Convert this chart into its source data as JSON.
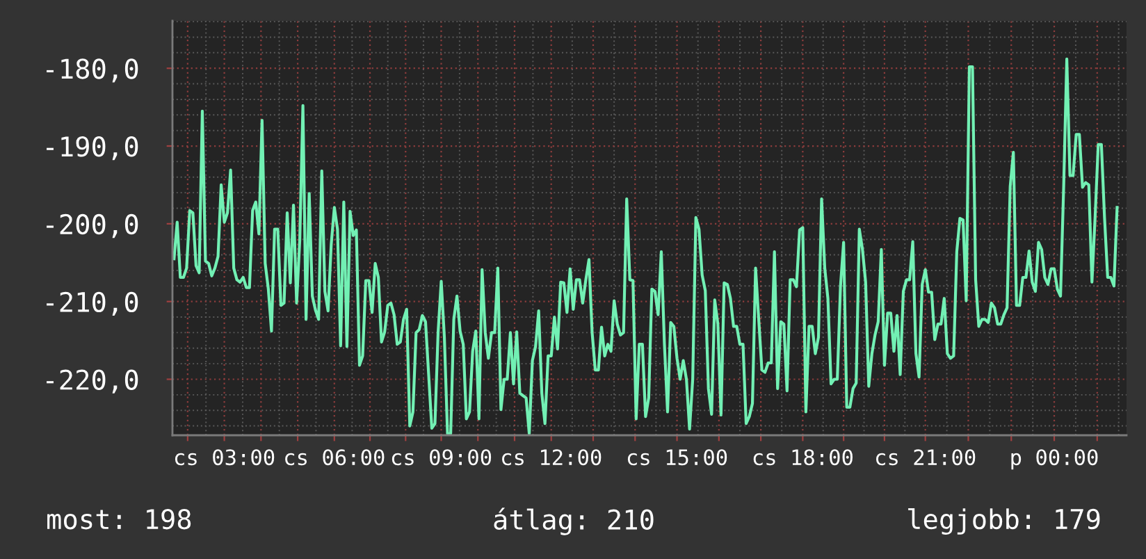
{
  "chart_data": {
    "type": "line",
    "categories": [
      null,
      null,
      null,
      null,
      null,
      null,
      null,
      null,
      null,
      null,
      null,
      null,
      null,
      null,
      null,
      null,
      "cs 03:00",
      null,
      null,
      null,
      null,
      null,
      null,
      null,
      null,
      null,
      null,
      null,
      null,
      null,
      null,
      null,
      null,
      null,
      null,
      null,
      null,
      null,
      null,
      null,
      null,
      null,
      null,
      null,
      null,
      null,
      null,
      null,
      null,
      null,
      null,
      "cs 06:00",
      null,
      null,
      null,
      null,
      null,
      null,
      null,
      null,
      null,
      null,
      null,
      null,
      null,
      null,
      null,
      null,
      null,
      null,
      null,
      null,
      null,
      null,
      null,
      null,
      null,
      null,
      null,
      null,
      null,
      null,
      null,
      null,
      null,
      "cs 09:00",
      null,
      null,
      null,
      null,
      null,
      null,
      null,
      null,
      null,
      null,
      null,
      null,
      null,
      null,
      null,
      null,
      null,
      null,
      null,
      null,
      null,
      null,
      null,
      null,
      null,
      null,
      null,
      null,
      null,
      null,
      null,
      null,
      null,
      null,
      "cs 12:00",
      null,
      null,
      null,
      null,
      null,
      null,
      null,
      null,
      null,
      null,
      null,
      null,
      null,
      null,
      null,
      null,
      null,
      null,
      null,
      null,
      null,
      null,
      null,
      null,
      null,
      null,
      null,
      null,
      null,
      null,
      null,
      null,
      null,
      null,
      null,
      null,
      null,
      null,
      null,
      "cs 15:00",
      null,
      null,
      null,
      null,
      null,
      null,
      null,
      null,
      null,
      null,
      null,
      null,
      null,
      null,
      null,
      null,
      null,
      null,
      null,
      null,
      null,
      null,
      null,
      null,
      null,
      null,
      null,
      null,
      null,
      null,
      null,
      null,
      null,
      null,
      null,
      null,
      null,
      null,
      null,
      "cs 18:00",
      null,
      null,
      null,
      null,
      null,
      null,
      null,
      null,
      null,
      null,
      null,
      null,
      null,
      null,
      null,
      null,
      null,
      null,
      null,
      null,
      null,
      null,
      null,
      null,
      null,
      null,
      null,
      null,
      null,
      null,
      null,
      null,
      null,
      null,
      null,
      null,
      null,
      null,
      "cs 21:00",
      null,
      null,
      null,
      null,
      null,
      null,
      null,
      null,
      null,
      null,
      null,
      null,
      null,
      null,
      null,
      null,
      null,
      null,
      null,
      null,
      null,
      null,
      null,
      null,
      null,
      null,
      null,
      null,
      null,
      null,
      null,
      null,
      null,
      null,
      null,
      null,
      null,
      null,
      null,
      null,
      "p 00:00",
      null,
      null,
      null,
      null,
      null,
      null,
      null,
      null,
      null,
      null,
      null,
      null,
      null,
      null,
      null,
      null,
      null,
      null,
      null,
      null
    ],
    "ylim": [
      -227.2,
      -173.9
    ],
    "yticks": [
      {
        "value": -220,
        "label": "-220,0"
      },
      {
        "value": -210,
        "label": "-210,0"
      },
      {
        "value": -200,
        "label": "-200,0"
      },
      {
        "value": -190,
        "label": "-190,0"
      },
      {
        "value": -180,
        "label": "-180,0"
      }
    ],
    "grid": true,
    "line_style": "solid",
    "annotations": [
      "most: 198",
      "átlag: 210",
      "legjobb: 179"
    ],
    "series": [
      {
        "color": "#72f0b4",
        "values": [
          -204.5,
          -199.8,
          -206.9,
          -206.9,
          -205.7,
          -198.3,
          -198.6,
          -205.4,
          -206.3,
          -185.5,
          -204.8,
          -205.1,
          -206.7,
          -205.7,
          -204.2,
          -195.0,
          -199.8,
          -198.6,
          -193.1,
          -205.7,
          -207.2,
          -207.5,
          -206.9,
          -208.2,
          -208.2,
          -198.3,
          -197.2,
          -201.3,
          -186.7,
          -205.1,
          -208.4,
          -213.8,
          -200.7,
          -200.7,
          -210.5,
          -210.2,
          -198.6,
          -207.6,
          -197.6,
          -210.2,
          -202.1,
          -184.8,
          -212.3,
          -196.1,
          -209.3,
          -211.1,
          -212.3,
          -193.2,
          -208.7,
          -211.2,
          -202.7,
          -197.9,
          -200.7,
          -215.7,
          -197.2,
          -215.8,
          -198.4,
          -201.5,
          -200.8,
          -218.2,
          -217.0,
          -207.3,
          -207.3,
          -211.4,
          -205.1,
          -206.9,
          -215.2,
          -213.9,
          -210.5,
          -210.2,
          -211.7,
          -215.5,
          -215.2,
          -212.3,
          -211.0,
          -226.0,
          -224.2,
          -214.0,
          -213.6,
          -211.8,
          -212.6,
          -219.4,
          -226.3,
          -225.7,
          -214.0,
          -207.4,
          -214.6,
          -227.0,
          -227.0,
          -212.3,
          -209.3,
          -213.8,
          -215.5,
          -225.1,
          -224.2,
          -216.4,
          -213.8,
          -225.1,
          -205.9,
          -214.0,
          -217.3,
          -214.0,
          -214.0,
          -205.7,
          -223.9,
          -220.0,
          -220.0,
          -214.0,
          -220.6,
          -213.9,
          -221.8,
          -222.1,
          -222.4,
          -227.0,
          -217.6,
          -215.8,
          -211.2,
          -221.8,
          -225.7,
          -217.0,
          -217.0,
          -212.0,
          -216.1,
          -207.5,
          -207.6,
          -211.4,
          -205.8,
          -211.0,
          -207.2,
          -207.2,
          -210.2,
          -207.2,
          -204.6,
          -214.0,
          -218.8,
          -218.8,
          -213.3,
          -217.0,
          -215.5,
          -216.4,
          -209.9,
          -212.9,
          -214.3,
          -214.0,
          -196.8,
          -207.2,
          -207.3,
          -225.1,
          -215.5,
          -215.5,
          -224.8,
          -222.4,
          -208.4,
          -208.7,
          -211.7,
          -203.6,
          -215.5,
          -224.2,
          -212.7,
          -213.2,
          -217.3,
          -220.0,
          -217.6,
          -220.0,
          -226.4,
          -220.0,
          -199.2,
          -200.7,
          -206.6,
          -208.6,
          -221.2,
          -224.5,
          -209.8,
          -212.9,
          -224.6,
          -207.6,
          -207.8,
          -209.6,
          -213.2,
          -213.2,
          -215.5,
          -215.5,
          -225.7,
          -224.8,
          -223.1,
          -205.7,
          -212.3,
          -218.8,
          -219.1,
          -217.9,
          -217.9,
          -203.6,
          -221.2,
          -212.6,
          -212.9,
          -221.5,
          -207.2,
          -207.2,
          -208.1,
          -200.8,
          -200.5,
          -224.2,
          -213.2,
          -213.2,
          -216.7,
          -214.6,
          -196.8,
          -205.7,
          -209.6,
          -220.6,
          -220.0,
          -220.0,
          -208.1,
          -202.4,
          -223.6,
          -223.6,
          -221.2,
          -220.5,
          -200.7,
          -203.3,
          -207.5,
          -220.9,
          -216.7,
          -214.3,
          -212.6,
          -203.3,
          -218.2,
          -211.5,
          -211.5,
          -216.4,
          -211.8,
          -219.4,
          -208.7,
          -207.2,
          -207.2,
          -202.3,
          -216.7,
          -219.7,
          -207.8,
          -205.9,
          -208.8,
          -208.8,
          -214.9,
          -212.9,
          -212.9,
          -209.6,
          -216.7,
          -217.3,
          -217.0,
          -203.6,
          -199.3,
          -199.5,
          -209.9,
          -179.8,
          -179.8,
          -207.2,
          -213.2,
          -212.3,
          -212.3,
          -212.7,
          -210.2,
          -210.8,
          -212.9,
          -212.9,
          -211.7,
          -210.8,
          -195.2,
          -190.8,
          -210.5,
          -210.5,
          -206.9,
          -206.9,
          -203.5,
          -207.5,
          -208.7,
          -202.4,
          -203.3,
          -206.9,
          -207.8,
          -205.8,
          -205.8,
          -208.4,
          -209.3,
          -195.3,
          -178.8,
          -193.8,
          -193.8,
          -188.5,
          -188.5,
          -195.3,
          -194.7,
          -195.0,
          -207.5,
          -199.2,
          -189.8,
          -189.8,
          -199.2,
          -206.9,
          -206.9,
          -208.0,
          -197.9
        ]
      }
    ]
  }
}
